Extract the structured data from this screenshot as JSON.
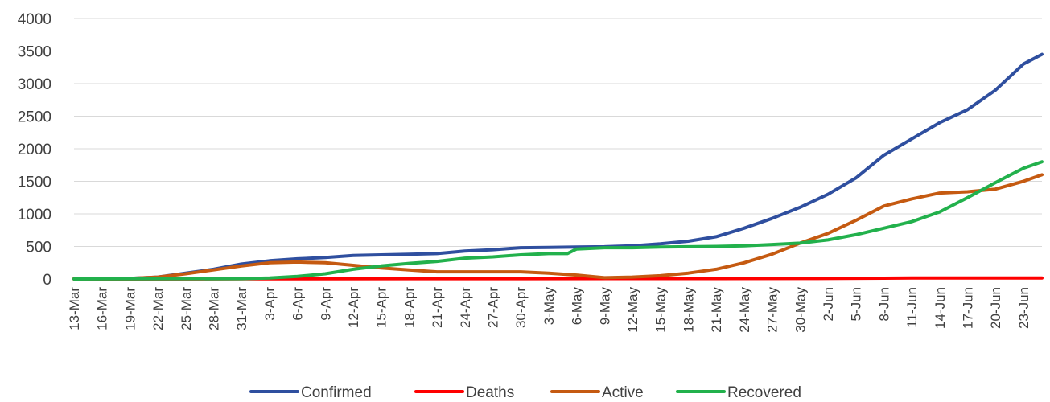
{
  "chart_data": {
    "type": "line",
    "title": "",
    "xlabel": "",
    "ylabel": "",
    "ylim": [
      0,
      4000
    ],
    "yticks": [
      0,
      500,
      1000,
      1500,
      2000,
      2500,
      3000,
      3500,
      4000
    ],
    "x_start": "13-Mar",
    "x_end": "25-Jun",
    "xtick_labels": [
      "13-Mar",
      "16-Mar",
      "19-Mar",
      "22-Mar",
      "25-Mar",
      "28-Mar",
      "31-Mar",
      "3-Apr",
      "6-Apr",
      "9-Apr",
      "12-Apr",
      "15-Apr",
      "18-Apr",
      "21-Apr",
      "24-Apr",
      "27-Apr",
      "30-Apr",
      "3-May",
      "6-May",
      "9-May",
      "12-May",
      "15-May",
      "18-May",
      "21-May",
      "24-May",
      "27-May",
      "30-May",
      "2-Jun",
      "5-Jun",
      "8-Jun",
      "11-Jun",
      "14-Jun",
      "17-Jun",
      "20-Jun",
      "23-Jun"
    ],
    "grid": true,
    "legend": "bottom",
    "series": [
      {
        "name": "Confirmed",
        "color": "#2f4f9f",
        "points": [
          [
            "13-Mar",
            5
          ],
          [
            "19-Mar",
            10
          ],
          [
            "22-Mar",
            30
          ],
          [
            "25-Mar",
            90
          ],
          [
            "28-Mar",
            150
          ],
          [
            "31-Mar",
            230
          ],
          [
            "3-Apr",
            280
          ],
          [
            "6-Apr",
            310
          ],
          [
            "9-Apr",
            330
          ],
          [
            "12-Apr",
            360
          ],
          [
            "15-Apr",
            370
          ],
          [
            "18-Apr",
            380
          ],
          [
            "21-Apr",
            390
          ],
          [
            "24-Apr",
            430
          ],
          [
            "27-Apr",
            450
          ],
          [
            "30-Apr",
            480
          ],
          [
            "3-May",
            485
          ],
          [
            "6-May",
            490
          ],
          [
            "9-May",
            495
          ],
          [
            "12-May",
            510
          ],
          [
            "15-May",
            540
          ],
          [
            "18-May",
            580
          ],
          [
            "21-May",
            650
          ],
          [
            "24-May",
            780
          ],
          [
            "27-May",
            930
          ],
          [
            "30-May",
            1100
          ],
          [
            "2-Jun",
            1300
          ],
          [
            "5-Jun",
            1550
          ],
          [
            "8-Jun",
            1900
          ],
          [
            "11-Jun",
            2150
          ],
          [
            "14-Jun",
            2400
          ],
          [
            "17-Jun",
            2600
          ],
          [
            "20-Jun",
            2900
          ],
          [
            "23-Jun",
            3300
          ],
          [
            "25-Jun",
            3450
          ]
        ]
      },
      {
        "name": "Deaths",
        "color": "#ff0000",
        "points": [
          [
            "13-Mar",
            0
          ],
          [
            "31-Mar",
            2
          ],
          [
            "30-Apr",
            5
          ],
          [
            "30-May",
            8
          ],
          [
            "8-Jun",
            12
          ],
          [
            "11-Jun",
            15
          ],
          [
            "25-Jun",
            15
          ]
        ]
      },
      {
        "name": "Active",
        "color": "#c55a11",
        "points": [
          [
            "13-Mar",
            5
          ],
          [
            "19-Mar",
            10
          ],
          [
            "22-Mar",
            30
          ],
          [
            "25-Mar",
            80
          ],
          [
            "28-Mar",
            140
          ],
          [
            "31-Mar",
            200
          ],
          [
            "3-Apr",
            250
          ],
          [
            "6-Apr",
            260
          ],
          [
            "9-Apr",
            250
          ],
          [
            "12-Apr",
            210
          ],
          [
            "15-Apr",
            170
          ],
          [
            "18-Apr",
            140
          ],
          [
            "21-Apr",
            110
          ],
          [
            "24-Apr",
            110
          ],
          [
            "27-Apr",
            110
          ],
          [
            "30-Apr",
            110
          ],
          [
            "3-May",
            90
          ],
          [
            "6-May",
            60
          ],
          [
            "9-May",
            20
          ],
          [
            "12-May",
            30
          ],
          [
            "15-May",
            50
          ],
          [
            "18-May",
            90
          ],
          [
            "21-May",
            150
          ],
          [
            "24-May",
            250
          ],
          [
            "27-May",
            380
          ],
          [
            "30-May",
            550
          ],
          [
            "2-Jun",
            700
          ],
          [
            "5-Jun",
            900
          ],
          [
            "8-Jun",
            1120
          ],
          [
            "11-Jun",
            1230
          ],
          [
            "14-Jun",
            1320
          ],
          [
            "17-Jun",
            1340
          ],
          [
            "20-Jun",
            1380
          ],
          [
            "23-Jun",
            1500
          ],
          [
            "25-Jun",
            1600
          ]
        ]
      },
      {
        "name": "Recovered",
        "color": "#22b14c",
        "points": [
          [
            "13-Mar",
            0
          ],
          [
            "31-Mar",
            5
          ],
          [
            "3-Apr",
            15
          ],
          [
            "6-Apr",
            40
          ],
          [
            "9-Apr",
            80
          ],
          [
            "12-Apr",
            150
          ],
          [
            "15-Apr",
            200
          ],
          [
            "18-Apr",
            240
          ],
          [
            "21-Apr",
            270
          ],
          [
            "24-Apr",
            320
          ],
          [
            "27-Apr",
            340
          ],
          [
            "30-Apr",
            370
          ],
          [
            "3-May",
            390
          ],
          [
            "5-May",
            390
          ],
          [
            "6-May",
            460
          ],
          [
            "9-May",
            480
          ],
          [
            "12-May",
            480
          ],
          [
            "15-May",
            490
          ],
          [
            "18-May",
            495
          ],
          [
            "21-May",
            500
          ],
          [
            "24-May",
            510
          ],
          [
            "27-May",
            530
          ],
          [
            "30-May",
            550
          ],
          [
            "2-Jun",
            600
          ],
          [
            "5-Jun",
            680
          ],
          [
            "8-Jun",
            780
          ],
          [
            "11-Jun",
            880
          ],
          [
            "14-Jun",
            1030
          ],
          [
            "17-Jun",
            1250
          ],
          [
            "20-Jun",
            1480
          ],
          [
            "23-Jun",
            1700
          ],
          [
            "25-Jun",
            1800
          ]
        ]
      }
    ]
  }
}
